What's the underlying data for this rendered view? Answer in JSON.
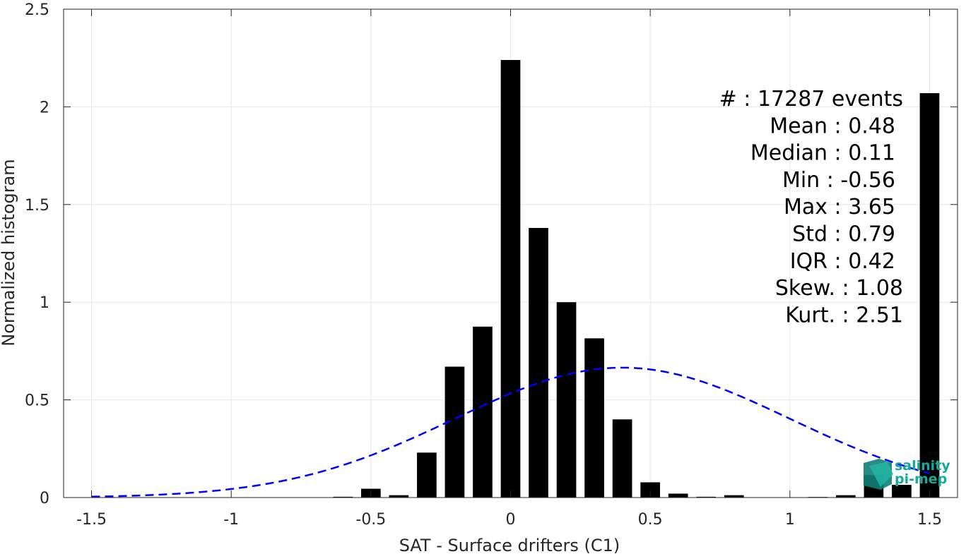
{
  "chart_data": {
    "type": "bar",
    "xlabel": "SAT - Surface drifters (C1)",
    "ylabel": "Normalized histogram",
    "xlim": [
      -1.6,
      1.6
    ],
    "ylim": [
      0,
      2.5
    ],
    "x_ticks": [
      -1.5,
      -1,
      -0.5,
      0,
      0.5,
      1,
      1.5
    ],
    "x_tick_labels": [
      "-1.5",
      "-1",
      "-0.5",
      "0",
      "0.5",
      "1",
      "1.5"
    ],
    "y_ticks": [
      0,
      0.5,
      1,
      1.5,
      2,
      2.5
    ],
    "y_tick_labels": [
      "0",
      "0.5",
      "1",
      "1.5",
      "2",
      "2.5"
    ],
    "grid": true,
    "bar_width": 0.07,
    "bars": [
      {
        "x": -0.6,
        "value": 0.004
      },
      {
        "x": -0.5,
        "value": 0.045
      },
      {
        "x": -0.4,
        "value": 0.012
      },
      {
        "x": -0.3,
        "value": 0.23
      },
      {
        "x": -0.2,
        "value": 0.67
      },
      {
        "x": -0.1,
        "value": 0.875
      },
      {
        "x": 0.0,
        "value": 2.24
      },
      {
        "x": 0.1,
        "value": 1.38
      },
      {
        "x": 0.2,
        "value": 1.0
      },
      {
        "x": 0.3,
        "value": 0.815
      },
      {
        "x": 0.4,
        "value": 0.4
      },
      {
        "x": 0.5,
        "value": 0.078
      },
      {
        "x": 0.6,
        "value": 0.02
      },
      {
        "x": 0.7,
        "value": 0.004
      },
      {
        "x": 0.8,
        "value": 0.012
      },
      {
        "x": 1.1,
        "value": 0.003
      },
      {
        "x": 1.2,
        "value": 0.012
      },
      {
        "x": 1.3,
        "value": 0.115
      },
      {
        "x": 1.4,
        "value": 0.065
      },
      {
        "x": 1.5,
        "value": 2.07
      }
    ],
    "normal_fit": {
      "mean": 0.4,
      "std": 0.6,
      "x_range": [
        -1.5,
        1.5
      ],
      "style": "dashed",
      "color": "#0000ff"
    },
    "colors": {
      "bars": "#000000",
      "fit": "#0000ff",
      "grid": "#e6e6e6",
      "axis": "#262626"
    }
  },
  "stats": [
    {
      "label": "#  :",
      "value": "17287 events"
    },
    {
      "label": "Mean :",
      "value": "0.48"
    },
    {
      "label": "Median :",
      "value": "0.11"
    },
    {
      "label": "Min :",
      "value": "-0.56"
    },
    {
      "label": "Max :",
      "value": "3.65"
    },
    {
      "label": "Std :",
      "value": "0.79"
    },
    {
      "label": "IQR :",
      "value": "0.42"
    },
    {
      "label": "Skew. :",
      "value": "1.08"
    },
    {
      "label": "Kurt. :",
      "value": "2.51"
    }
  ],
  "logo": {
    "line1": "salinity",
    "line2": "pi-mep",
    "color": "#17a99a"
  }
}
